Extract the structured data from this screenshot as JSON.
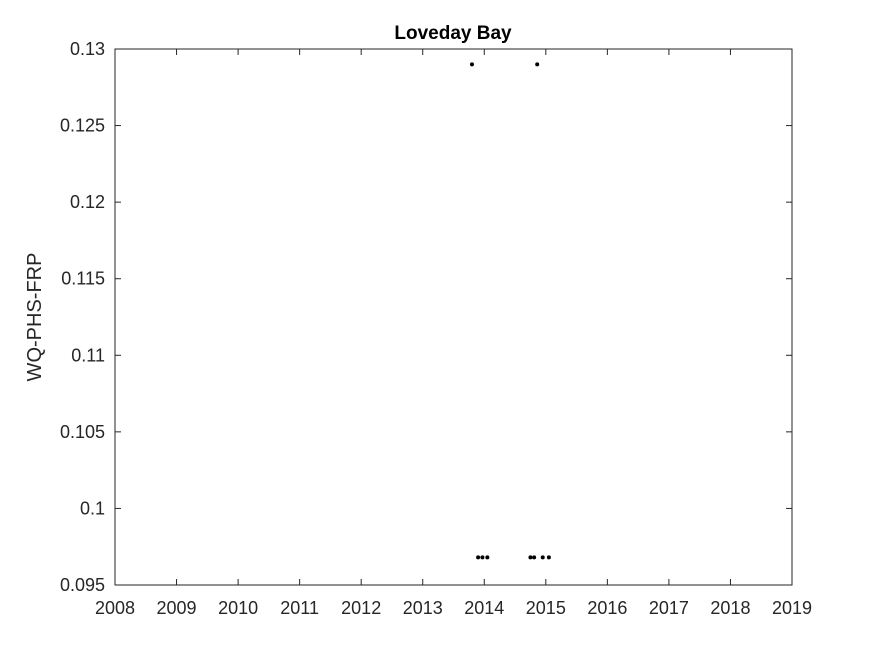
{
  "chart_data": {
    "type": "scatter",
    "title": "Loveday Bay",
    "xlabel": "",
    "ylabel": "WQ-PHS-FRP",
    "xlim": [
      2008,
      2019
    ],
    "ylim": [
      0.095,
      0.13
    ],
    "xticks": [
      "2008",
      "2009",
      "2010",
      "2011",
      "2012",
      "2013",
      "2014",
      "2015",
      "2016",
      "2017",
      "2018",
      "2019"
    ],
    "yticks": [
      "0.095",
      "0.1",
      "0.105",
      "0.11",
      "0.115",
      "0.12",
      "0.125",
      "0.13"
    ],
    "grid": false,
    "x": [
      2013.8,
      2013.9,
      2013.97,
      2014.05,
      2014.75,
      2014.81,
      2014.86,
      2014.95,
      2015.05
    ],
    "y": [
      0.129,
      0.0968,
      0.0968,
      0.0968,
      0.0968,
      0.0968,
      0.129,
      0.0968,
      0.0968
    ],
    "colors": {
      "marker": "#000000",
      "axis": "#262626",
      "background": "#ffffff"
    }
  }
}
